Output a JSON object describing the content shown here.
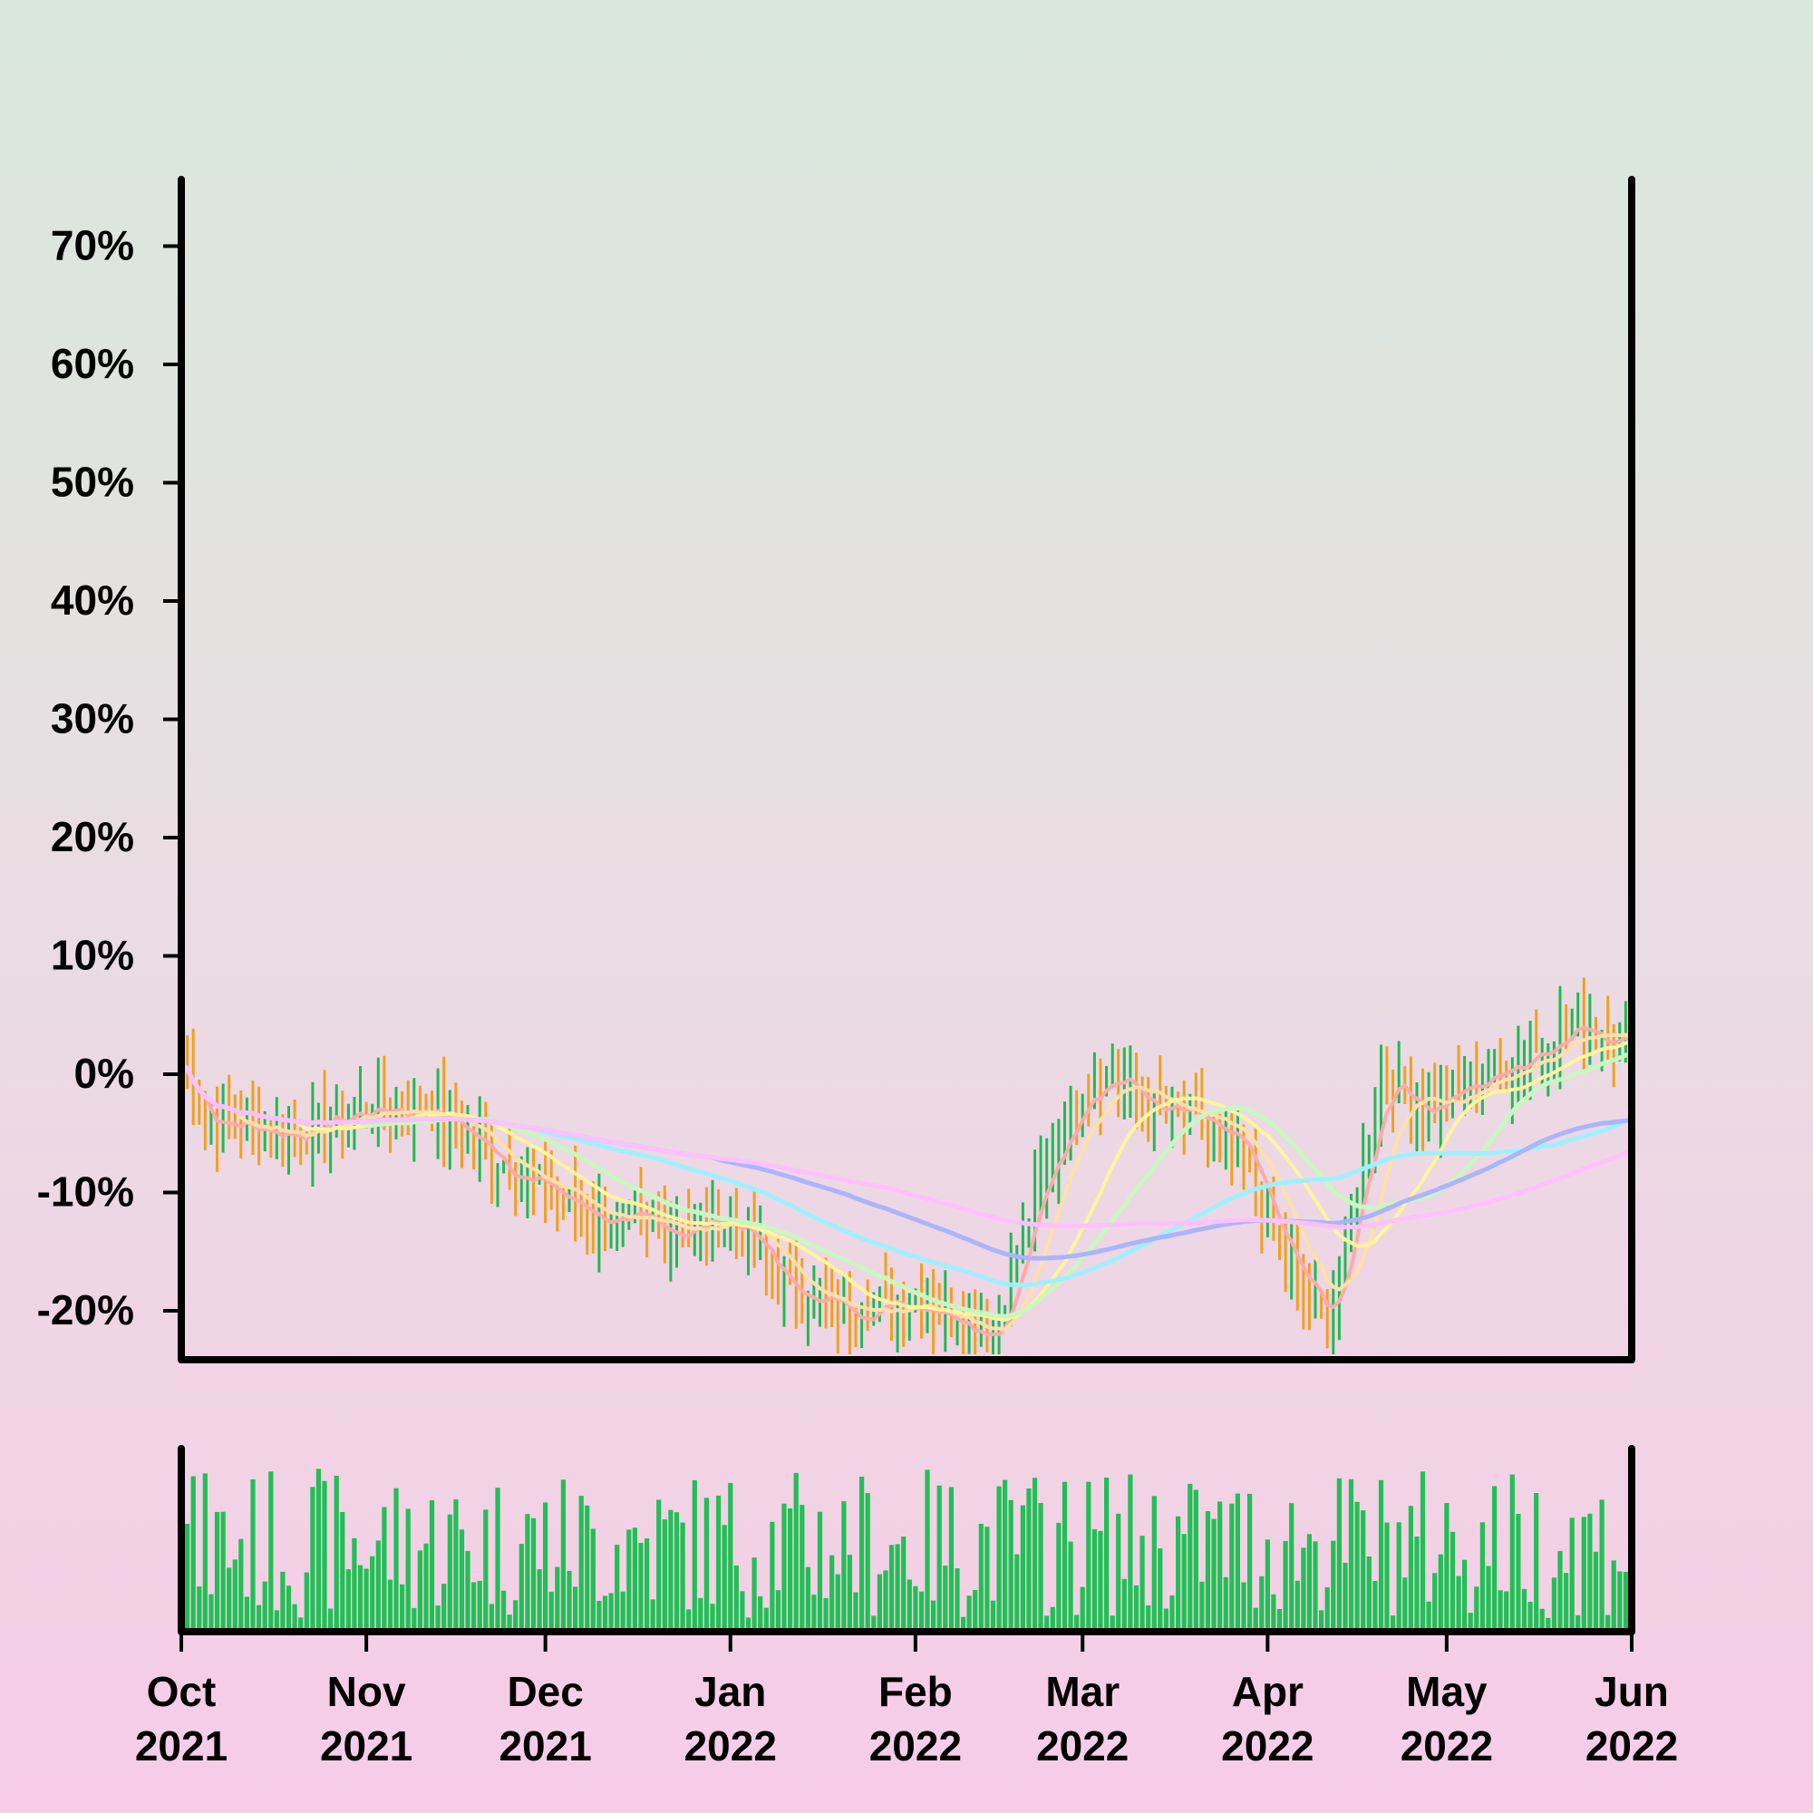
{
  "chart_data": [
    {
      "type": "candlestick",
      "series_name": "",
      "x_range": [
        "2021-10-01",
        "2022-06-01"
      ],
      "ylim": [
        -24,
        76
      ],
      "y_ticks": [
        -20,
        -10,
        0,
        10,
        20,
        30,
        40,
        50,
        60,
        70
      ],
      "y_tick_labels": [
        "-20%",
        "-10%",
        "0%",
        "10%",
        "20%",
        "30%",
        "40%",
        "50%",
        "60%",
        "70%"
      ],
      "y_unit": "%",
      "grid": false,
      "up_color": "#1fb953",
      "down_color": "#f0a020",
      "close_anchors": [
        {
          "date": "2021-10-01",
          "close": 1
        },
        {
          "date": "2021-10-05",
          "close": -4
        },
        {
          "date": "2021-10-20",
          "close": -5
        },
        {
          "date": "2021-11-01",
          "close": -3
        },
        {
          "date": "2021-11-12",
          "close": -3
        },
        {
          "date": "2021-11-25",
          "close": -8
        },
        {
          "date": "2021-12-05",
          "close": -11
        },
        {
          "date": "2021-12-15",
          "close": -13
        },
        {
          "date": "2021-12-25",
          "close": -13
        },
        {
          "date": "2022-01-01",
          "close": -12
        },
        {
          "date": "2022-01-10",
          "close": -18
        },
        {
          "date": "2022-01-20",
          "close": -20
        },
        {
          "date": "2022-02-01",
          "close": -19
        },
        {
          "date": "2022-02-10",
          "close": -21
        },
        {
          "date": "2022-02-14",
          "close": -22
        },
        {
          "date": "2022-02-22",
          "close": -9
        },
        {
          "date": "2022-03-01",
          "close": -1
        },
        {
          "date": "2022-03-06",
          "close": 0
        },
        {
          "date": "2022-03-12",
          "close": -3
        },
        {
          "date": "2022-03-20",
          "close": -4
        },
        {
          "date": "2022-03-28",
          "close": -7
        },
        {
          "date": "2022-04-04",
          "close": -16
        },
        {
          "date": "2022-04-11",
          "close": -21
        },
        {
          "date": "2022-04-14",
          "close": -14
        },
        {
          "date": "2022-04-20",
          "close": 0
        },
        {
          "date": "2022-04-27",
          "close": -3
        },
        {
          "date": "2022-05-05",
          "close": -1
        },
        {
          "date": "2022-05-15",
          "close": 2
        },
        {
          "date": "2022-05-22",
          "close": 4
        },
        {
          "date": "2022-06-01",
          "close": 3
        }
      ],
      "moving_averages": [
        {
          "color": "#ffaaaa",
          "window": 5
        },
        {
          "color": "#ffe0a8",
          "window": 10
        },
        {
          "color": "#fff59d",
          "window": 20
        },
        {
          "color": "#c9f7c0",
          "window": 30
        },
        {
          "color": "#9ff0ff",
          "window": 60
        },
        {
          "color": "#aab4ff",
          "window": 90
        },
        {
          "color": "#ffc0ff",
          "window": 120
        }
      ]
    },
    {
      "type": "bar",
      "series_name": "",
      "color": "#21bf55",
      "x_range": [
        "2021-10-01",
        "2022-06-01"
      ],
      "x_ticks": [
        "2021-10-01",
        "2021-11-01",
        "2021-12-01",
        "2022-01-01",
        "2022-02-01",
        "2022-03-01",
        "2022-04-01",
        "2022-05-01",
        "2022-06-01"
      ],
      "x_tick_labels": [
        [
          "Oct",
          "2021"
        ],
        [
          "Nov",
          "2021"
        ],
        [
          "Dec",
          "2021"
        ],
        [
          "Jan",
          "2022"
        ],
        [
          "Feb",
          "2022"
        ],
        [
          "Mar",
          "2022"
        ],
        [
          "Apr",
          "2022"
        ],
        [
          "May",
          "2022"
        ],
        [
          "Jun",
          "2022"
        ]
      ],
      "ylim": [
        0,
        1
      ],
      "y_axis_labels": false
    }
  ]
}
